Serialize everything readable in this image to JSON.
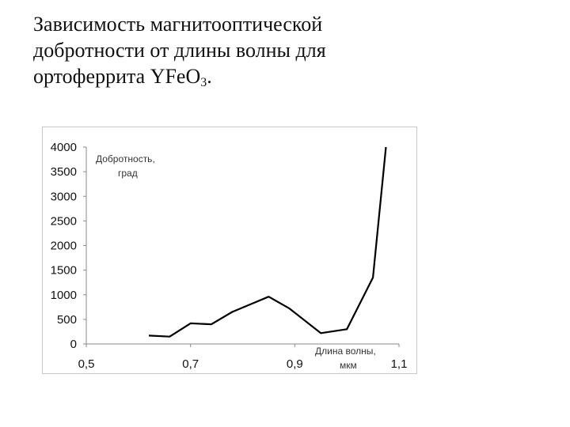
{
  "slide": {
    "title_line1": "Зависимость магнитооптической",
    "title_line2": "добротности от длины волны для",
    "title_line3_prefix": "ортоферрита  YFeO",
    "title_line3_sub": "3",
    "title_line3_suffix": "."
  },
  "chart_data": {
    "type": "line",
    "ylabel_line1": "Добротность,",
    "ylabel_line2": "град",
    "xlabel_line1": "Длина волны,",
    "xlabel_line2": "мкм",
    "xlim": [
      0.5,
      1.1
    ],
    "ylim": [
      0,
      4000
    ],
    "x_ticks": [
      "0,5",
      "0,7",
      "0,9",
      "1,1"
    ],
    "x_tick_values": [
      0.5,
      0.7,
      0.9,
      1.1
    ],
    "y_ticks": [
      "0",
      "500",
      "1000",
      "1500",
      "2000",
      "2500",
      "3000",
      "3500",
      "4000"
    ],
    "y_tick_values": [
      0,
      500,
      1000,
      1500,
      2000,
      2500,
      3000,
      3500,
      4000
    ],
    "grid": false,
    "line_color": "#000000",
    "series": [
      {
        "x": [
          0.62,
          0.66,
          0.7,
          0.74,
          0.78,
          0.85,
          0.89,
          0.95,
          1.0,
          1.05,
          1.075
        ],
        "y": [
          170,
          150,
          420,
          400,
          650,
          960,
          720,
          220,
          300,
          1350,
          4000
        ]
      }
    ]
  }
}
